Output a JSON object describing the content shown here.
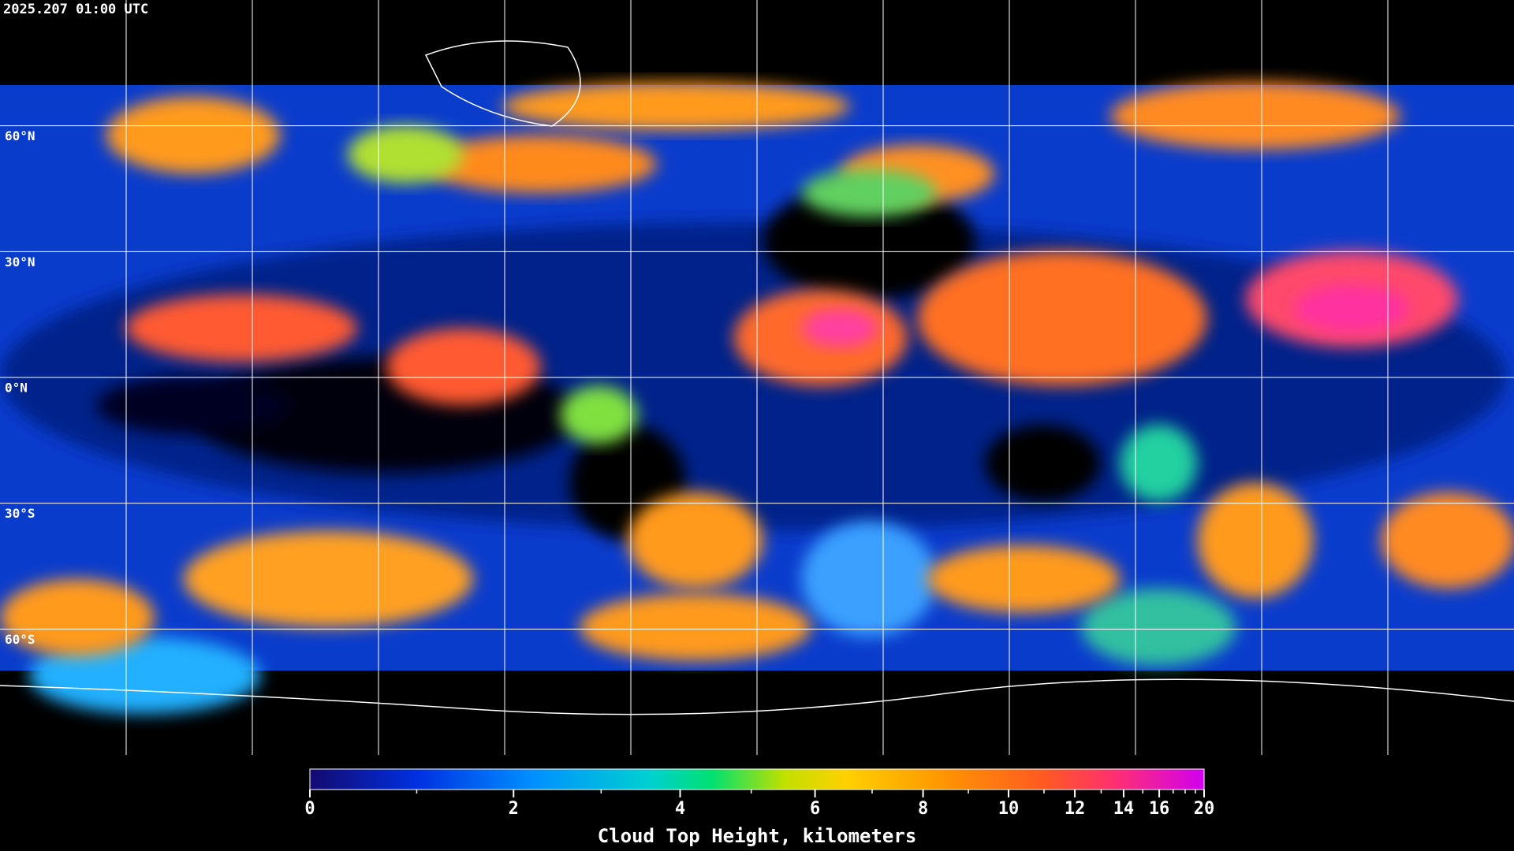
{
  "map": {
    "timestamp": "2025.207 01:00 UTC",
    "lat_lines": [
      {
        "value": 60,
        "label": "60°N"
      },
      {
        "value": 30,
        "label": "30°N"
      },
      {
        "value": 0,
        "label": "0°N"
      },
      {
        "value": -30,
        "label": "30°S"
      },
      {
        "value": -60,
        "label": "60°S"
      }
    ]
  },
  "colorbar": {
    "label": "Cloud Top Height, kilometers",
    "range": [
      0,
      20
    ],
    "scale": "pressure",
    "ticks": [
      0,
      2,
      4,
      6,
      8,
      10,
      12,
      14,
      16,
      20
    ],
    "minor_ticks": [
      1,
      3,
      5,
      7,
      9,
      11,
      13,
      15,
      17,
      18,
      19
    ]
  }
}
